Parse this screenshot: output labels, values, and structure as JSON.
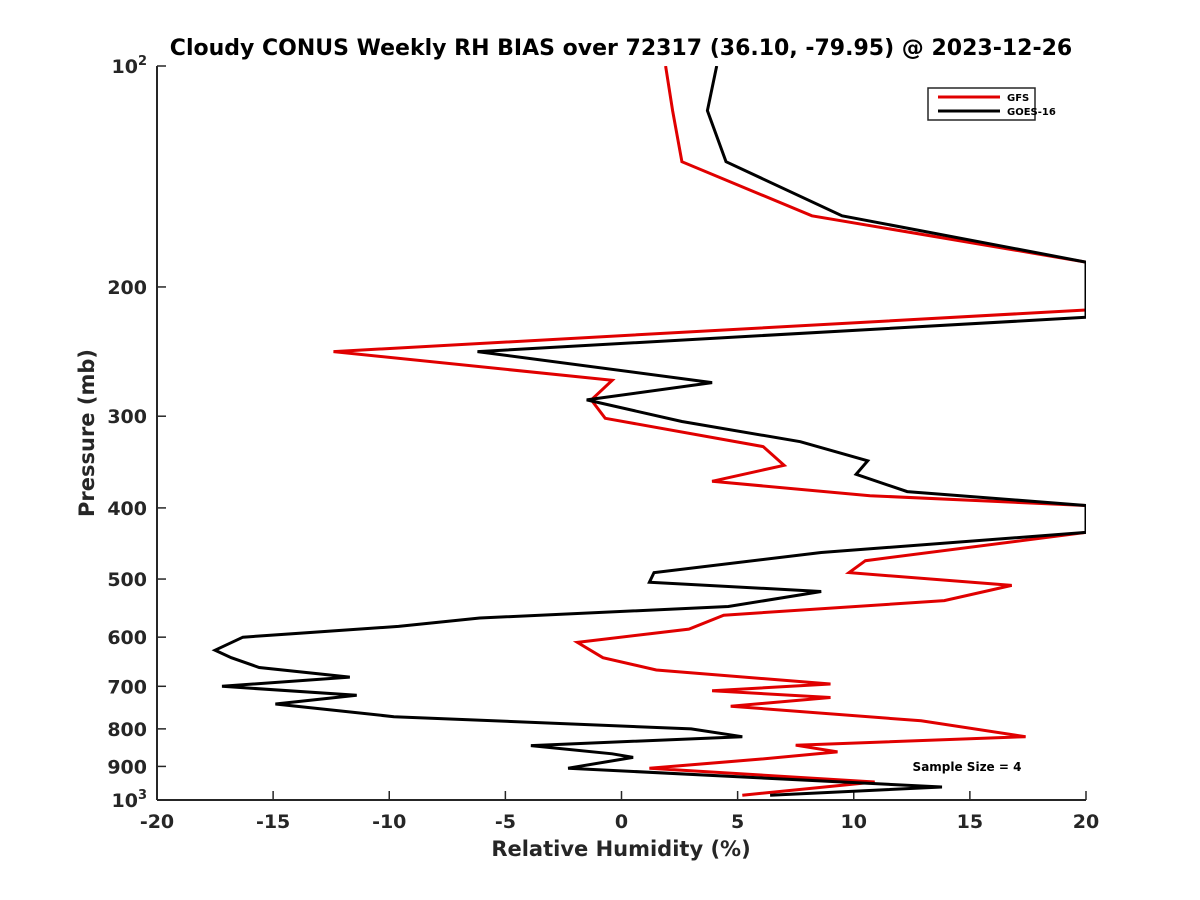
{
  "chart_data": {
    "type": "line",
    "title": "Cloudy CONUS Weekly RH BIAS over 72317 (36.10, -79.95) @ 2023-12-26",
    "xlabel": "Relative Humidity (%)",
    "ylabel": "Pressure (mb)",
    "xlim": [
      -20,
      20
    ],
    "ylim": [
      100,
      1000
    ],
    "y_scale": "log",
    "y_reversed": true,
    "grid": false,
    "x_ticks": [
      -20,
      -15,
      -10,
      -5,
      0,
      5,
      10,
      15,
      20
    ],
    "x_tick_labels": [
      "-20",
      "-15",
      "-10",
      "-5",
      "0",
      "5",
      "10",
      "15",
      "20"
    ],
    "y_ticks": [
      {
        "value": 100,
        "base": "10",
        "exp": "2"
      },
      {
        "value": 200,
        "label": "200"
      },
      {
        "value": 300,
        "label": "300"
      },
      {
        "value": 400,
        "label": "400"
      },
      {
        "value": 500,
        "label": "500"
      },
      {
        "value": 600,
        "label": "600"
      },
      {
        "value": 700,
        "label": "700"
      },
      {
        "value": 800,
        "label": "800"
      },
      {
        "value": 900,
        "label": "900"
      },
      {
        "value": 1000,
        "base": "10",
        "exp": "3"
      }
    ],
    "legend_position": "top-right",
    "annotation": "Sample Size = 4",
    "series": [
      {
        "name": "GFS",
        "color": "#e00000",
        "points": [
          [
            1.9,
            100
          ],
          [
            2.2,
            115
          ],
          [
            2.6,
            135
          ],
          [
            8.2,
            160
          ],
          [
            20,
            185
          ],
          [
            20,
            215
          ],
          [
            -12.4,
            245
          ],
          [
            -0.4,
            268
          ],
          [
            -1.3,
            285
          ],
          [
            -0.7,
            302
          ],
          [
            6.1,
            330
          ],
          [
            7.0,
            350
          ],
          [
            3.9,
            368
          ],
          [
            10.7,
            385
          ],
          [
            20,
            397
          ],
          [
            20,
            432
          ],
          [
            10.5,
            472
          ],
          [
            9.8,
            490
          ],
          [
            16.8,
            510
          ],
          [
            13.9,
            535
          ],
          [
            4.4,
            560
          ],
          [
            2.9,
            585
          ],
          [
            -1.9,
            610
          ],
          [
            -0.8,
            640
          ],
          [
            1.5,
            665
          ],
          [
            9.0,
            695
          ],
          [
            3.9,
            710
          ],
          [
            9.0,
            725
          ],
          [
            4.7,
            745
          ],
          [
            12.9,
            780
          ],
          [
            17.4,
            820
          ],
          [
            7.5,
            842
          ],
          [
            9.3,
            860
          ],
          [
            5.9,
            880
          ],
          [
            1.2,
            905
          ],
          [
            10.9,
            945
          ],
          [
            5.2,
            985
          ]
        ]
      },
      {
        "name": "GOES-16",
        "color": "#000000",
        "points": [
          [
            4.1,
            100
          ],
          [
            3.7,
            115
          ],
          [
            4.5,
            135
          ],
          [
            9.5,
            160
          ],
          [
            20,
            185
          ],
          [
            20,
            220
          ],
          [
            -6.2,
            245
          ],
          [
            3.9,
            270
          ],
          [
            -1.5,
            285
          ],
          [
            2.6,
            305
          ],
          [
            7.7,
            325
          ],
          [
            10.6,
            345
          ],
          [
            10.1,
            360
          ],
          [
            12.3,
            380
          ],
          [
            20,
            397
          ],
          [
            20,
            432
          ],
          [
            8.6,
            460
          ],
          [
            1.4,
            490
          ],
          [
            1.2,
            505
          ],
          [
            8.6,
            520
          ],
          [
            4.6,
            545
          ],
          [
            -6.1,
            565
          ],
          [
            -9.6,
            580
          ],
          [
            -16.3,
            600
          ],
          [
            -17.5,
            625
          ],
          [
            -16.8,
            640
          ],
          [
            -15.6,
            660
          ],
          [
            -11.7,
            680
          ],
          [
            -17.2,
            700
          ],
          [
            -11.4,
            720
          ],
          [
            -14.9,
            740
          ],
          [
            -9.8,
            770
          ],
          [
            3.0,
            800
          ],
          [
            5.2,
            820
          ],
          [
            -3.9,
            843
          ],
          [
            -0.4,
            865
          ],
          [
            0.5,
            875
          ],
          [
            -2.3,
            905
          ],
          [
            13.8,
            960
          ],
          [
            6.4,
            985
          ]
        ]
      }
    ]
  }
}
